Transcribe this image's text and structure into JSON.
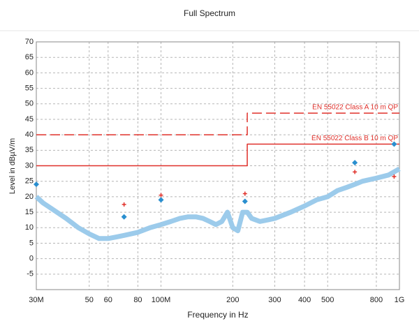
{
  "chart_data": {
    "type": "line",
    "title": "Full Spectrum",
    "x_label": "Frequency in Hz",
    "y_label": "Level in dBµV/m",
    "x_scale": "log",
    "grid": true,
    "xlim": [
      30000000,
      1000000000
    ],
    "xticks": [
      {
        "value": 30000000,
        "label": "30M"
      },
      {
        "value": 50000000,
        "label": "50"
      },
      {
        "value": 60000000,
        "label": "60"
      },
      {
        "value": 80000000,
        "label": "80"
      },
      {
        "value": 100000000,
        "label": "100M"
      },
      {
        "value": 200000000,
        "label": "200"
      },
      {
        "value": 300000000,
        "label": "300"
      },
      {
        "value": 400000000,
        "label": "400"
      },
      {
        "value": 500000000,
        "label": "500"
      },
      {
        "value": 800000000,
        "label": "800"
      },
      {
        "value": 1000000000,
        "label": "1G"
      }
    ],
    "ylim": [
      -10,
      70
    ],
    "yticks": [
      -5,
      0,
      5,
      10,
      15,
      20,
      25,
      30,
      35,
      40,
      45,
      50,
      55,
      60,
      65,
      70
    ],
    "series": [
      {
        "name": "EN 55022 Class A 10 m QP",
        "color": "#e0302a",
        "dashed": true,
        "x": [
          30000000,
          230000000,
          230000000,
          1000000000
        ],
        "values": [
          40,
          40,
          47,
          47
        ]
      },
      {
        "name": "EN 55022 Class B 10 m QP",
        "color": "#e0302a",
        "dashed": false,
        "x": [
          30000000,
          230000000,
          230000000,
          1000000000
        ],
        "values": [
          30,
          30,
          37,
          37
        ]
      },
      {
        "color": "#9ccbeb",
        "width": 7,
        "x": [
          30000000,
          32000000,
          35000000,
          40000000,
          45000000,
          50000000,
          55000000,
          60000000,
          65000000,
          70000000,
          80000000,
          90000000,
          100000000,
          110000000,
          120000000,
          130000000,
          140000000,
          150000000,
          160000000,
          170000000,
          180000000,
          190000000,
          200000000,
          210000000,
          220000000,
          230000000,
          240000000,
          260000000,
          280000000,
          300000000,
          350000000,
          400000000,
          450000000,
          500000000,
          550000000,
          600000000,
          650000000,
          700000000,
          800000000,
          900000000,
          1000000000
        ],
        "values": [
          20,
          18,
          16,
          13,
          10,
          8,
          6.5,
          6.5,
          7,
          7.5,
          8.5,
          10,
          11,
          12,
          13,
          13.5,
          13.5,
          13,
          12,
          11,
          12,
          15,
          10,
          9,
          15,
          15,
          13,
          12,
          12.5,
          13,
          15,
          17,
          19,
          20,
          22,
          23,
          24,
          25,
          26,
          27,
          29
        ]
      },
      {
        "marker": "diamond",
        "color": "#2a8fcf",
        "x": [
          30000000,
          70000000,
          100000000,
          225000000,
          650000000,
          950000000
        ],
        "values": [
          24,
          13.5,
          19,
          18.5,
          31,
          37
        ]
      },
      {
        "marker": "plus",
        "color": "#e0302a",
        "x": [
          70000000,
          100000000,
          225000000,
          650000000,
          950000000
        ],
        "values": [
          17.5,
          20.5,
          21,
          28,
          26.5
        ]
      }
    ]
  }
}
